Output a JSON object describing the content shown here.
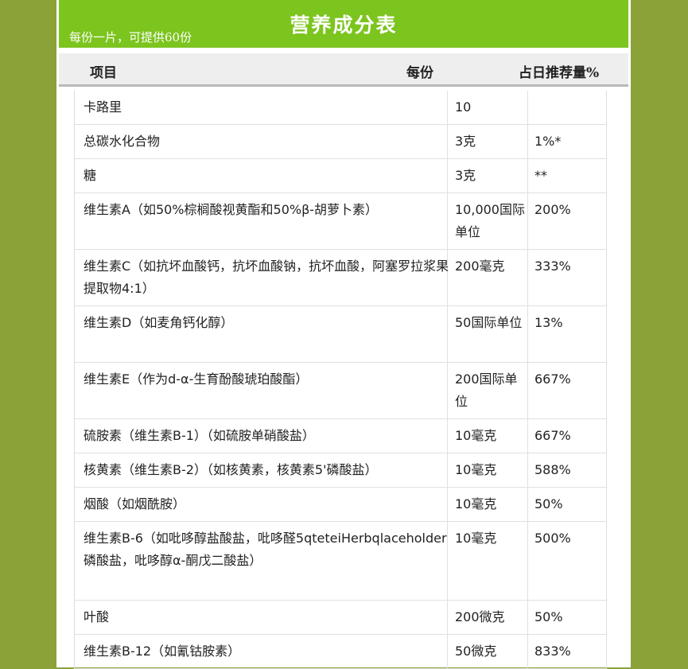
{
  "banner": {
    "title": "营养成分表",
    "subtitle": "每份一片，可提供60份"
  },
  "columns": {
    "item": "项目",
    "per_serving": "每份",
    "daily_value": "占日推荐量%"
  },
  "rows": [
    {
      "name": "卡路里",
      "amount": "10",
      "dv": ""
    },
    {
      "name": "总碳水化合物",
      "amount": "3克",
      "dv": "1%*"
    },
    {
      "name": "糖",
      "amount": "3克",
      "dv": "**"
    },
    {
      "name": "维生素A（如50%棕榈酸视黄酯和50%β-胡萝卜素）",
      "amount": "10,000国际单位",
      "dv": "200%"
    },
    {
      "name": "维生素C（如抗坏血酸钙，抗坏血酸钠，抗坏血酸，阿塞罗拉浆果提取物4:1）",
      "amount": "200毫克",
      "dv": "333%"
    },
    {
      "name": "维生素D（如麦角钙化醇）",
      "amount": "50国际单位",
      "dv": "13%"
    },
    {
      "name": "维生素E（作为d-α-生育酚酸琥珀酸酯）",
      "amount": "200国际单位",
      "dv": "667%"
    },
    {
      "name": "硫胺素（维生素B-1）（如硫胺单硝酸盐）",
      "amount": "10毫克",
      "dv": "667%"
    },
    {
      "name": "核黄素（维生素B-2）（如核黄素，核黄素5'磷酸盐）",
      "amount": "10毫克",
      "dv": "588%"
    },
    {
      "name": "烟酸（如烟酰胺）",
      "amount": "10毫克",
      "dv": "50%"
    },
    {
      "name": "维生素B-6（如吡哆醇盐酸盐，吡哆醛5qteteiHerbqlaceholder磷酸盐，吡哆醇α-酮戊二酸盐）",
      "amount": "10毫克",
      "dv": "500%"
    },
    {
      "name": "叶酸",
      "amount": "200微克",
      "dv": "50%"
    },
    {
      "name": "维生素B-12（如氰钴胺素）",
      "amount": "50微克",
      "dv": "833%"
    }
  ]
}
